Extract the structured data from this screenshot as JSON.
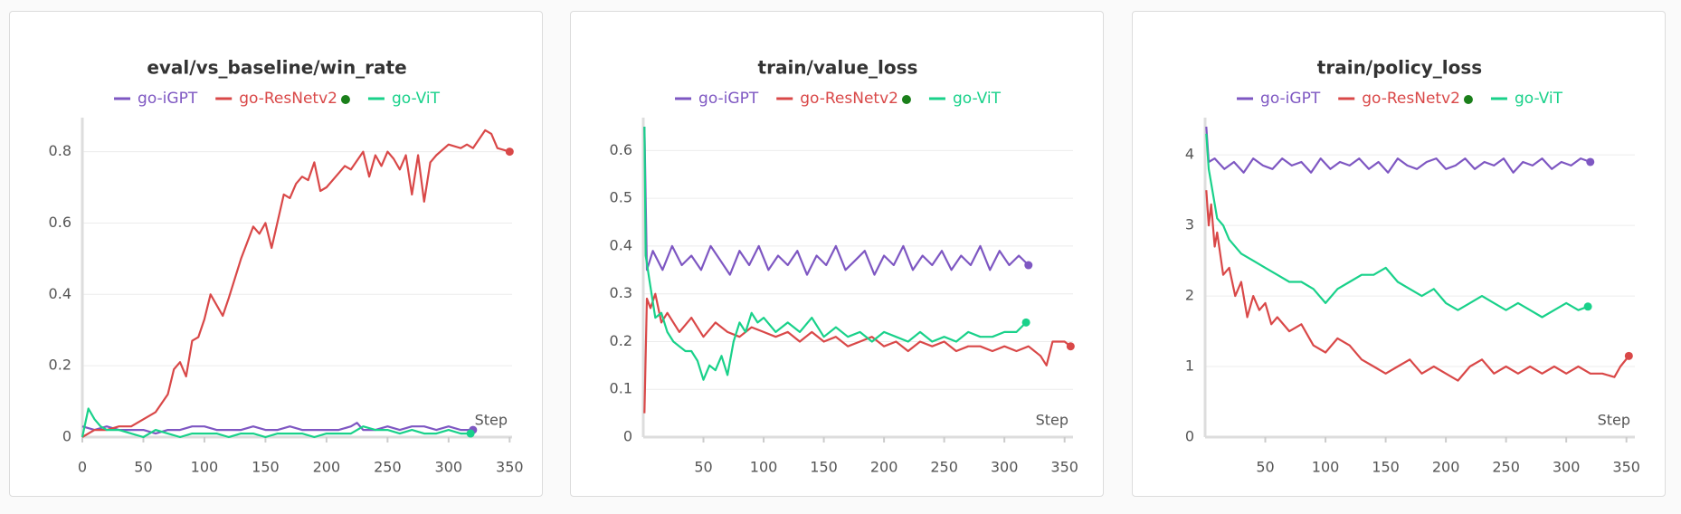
{
  "chart_data": [
    {
      "type": "line",
      "title": "eval/vs_baseline/win_rate",
      "x_label": "Step",
      "grid": true,
      "xlim": [
        0,
        352
      ],
      "ylim": [
        0,
        0.87
      ],
      "xticks": [
        0,
        50,
        100,
        150,
        200,
        250,
        300,
        350
      ],
      "yticks": [
        0,
        0.2,
        0.4,
        0.6,
        0.8
      ],
      "series": [
        {
          "name": "go-iGPT",
          "color": "#7e57c2",
          "x": [
            0,
            10,
            20,
            30,
            40,
            50,
            60,
            70,
            80,
            90,
            100,
            110,
            120,
            130,
            140,
            150,
            160,
            170,
            180,
            190,
            200,
            210,
            220,
            225,
            230,
            240,
            250,
            260,
            270,
            280,
            290,
            300,
            310,
            320
          ],
          "values": [
            0.03,
            0.02,
            0.03,
            0.02,
            0.02,
            0.02,
            0.01,
            0.02,
            0.02,
            0.03,
            0.03,
            0.02,
            0.02,
            0.02,
            0.03,
            0.02,
            0.02,
            0.03,
            0.02,
            0.02,
            0.02,
            0.02,
            0.03,
            0.04,
            0.02,
            0.02,
            0.03,
            0.02,
            0.03,
            0.03,
            0.02,
            0.03,
            0.02,
            0.02
          ]
        },
        {
          "name": "go-ResNetv2",
          "color": "#d94848",
          "x": [
            0,
            10,
            20,
            30,
            40,
            50,
            60,
            70,
            75,
            80,
            85,
            90,
            95,
            100,
            105,
            115,
            120,
            130,
            140,
            145,
            150,
            155,
            165,
            170,
            175,
            180,
            185,
            190,
            195,
            200,
            210,
            215,
            220,
            230,
            235,
            240,
            245,
            250,
            255,
            260,
            265,
            270,
            275,
            280,
            285,
            290,
            300,
            310,
            315,
            320,
            330,
            335,
            340,
            350
          ],
          "values": [
            0.0,
            0.02,
            0.02,
            0.03,
            0.03,
            0.05,
            0.07,
            0.12,
            0.19,
            0.21,
            0.17,
            0.27,
            0.28,
            0.33,
            0.4,
            0.34,
            0.39,
            0.5,
            0.59,
            0.57,
            0.6,
            0.53,
            0.68,
            0.67,
            0.71,
            0.73,
            0.72,
            0.77,
            0.69,
            0.7,
            0.74,
            0.76,
            0.75,
            0.8,
            0.73,
            0.79,
            0.76,
            0.8,
            0.78,
            0.75,
            0.79,
            0.68,
            0.79,
            0.66,
            0.77,
            0.79,
            0.82,
            0.81,
            0.82,
            0.81,
            0.86,
            0.85,
            0.81,
            0.8
          ]
        },
        {
          "name": "go-ViT",
          "color": "#19d18a",
          "x": [
            0,
            5,
            10,
            15,
            20,
            30,
            40,
            50,
            60,
            70,
            80,
            90,
            100,
            110,
            120,
            130,
            140,
            150,
            160,
            170,
            180,
            190,
            200,
            210,
            220,
            230,
            240,
            250,
            260,
            270,
            280,
            290,
            300,
            310,
            318
          ],
          "values": [
            0.0,
            0.08,
            0.05,
            0.03,
            0.02,
            0.02,
            0.01,
            0.0,
            0.02,
            0.01,
            0.0,
            0.01,
            0.01,
            0.01,
            0.0,
            0.01,
            0.01,
            0.0,
            0.01,
            0.01,
            0.01,
            0.0,
            0.01,
            0.01,
            0.01,
            0.03,
            0.02,
            0.02,
            0.01,
            0.02,
            0.01,
            0.01,
            0.02,
            0.01,
            0.01
          ]
        }
      ]
    },
    {
      "type": "line",
      "title": "train/value_loss",
      "x_label": "Step",
      "grid": true,
      "xlim": [
        0,
        357
      ],
      "ylim": [
        0,
        0.65
      ],
      "xticks": [
        50,
        100,
        150,
        200,
        250,
        300,
        350
      ],
      "yticks": [
        0,
        0.1,
        0.2,
        0.3,
        0.4,
        0.5,
        0.6
      ],
      "series": [
        {
          "name": "go-iGPT",
          "color": "#7e57c2",
          "x": [
            1,
            3,
            8,
            16,
            24,
            32,
            40,
            48,
            56,
            64,
            72,
            80,
            88,
            96,
            104,
            112,
            120,
            128,
            136,
            144,
            152,
            160,
            168,
            176,
            184,
            192,
            200,
            208,
            216,
            224,
            232,
            240,
            248,
            256,
            264,
            272,
            280,
            288,
            296,
            304,
            312,
            320
          ],
          "values": [
            0.65,
            0.35,
            0.39,
            0.35,
            0.4,
            0.36,
            0.38,
            0.35,
            0.4,
            0.37,
            0.34,
            0.39,
            0.36,
            0.4,
            0.35,
            0.38,
            0.36,
            0.39,
            0.34,
            0.38,
            0.36,
            0.4,
            0.35,
            0.37,
            0.39,
            0.34,
            0.38,
            0.36,
            0.4,
            0.35,
            0.38,
            0.36,
            0.39,
            0.35,
            0.38,
            0.36,
            0.4,
            0.35,
            0.39,
            0.36,
            0.38,
            0.36
          ]
        },
        {
          "name": "go-ResNetv2",
          "color": "#d94848",
          "x": [
            1,
            3,
            6,
            10,
            15,
            20,
            30,
            40,
            50,
            60,
            70,
            80,
            90,
            100,
            110,
            120,
            130,
            140,
            150,
            160,
            170,
            180,
            190,
            200,
            210,
            220,
            230,
            240,
            250,
            260,
            270,
            280,
            290,
            300,
            310,
            320,
            330,
            335,
            340,
            350,
            355
          ],
          "values": [
            0.05,
            0.29,
            0.27,
            0.3,
            0.24,
            0.26,
            0.22,
            0.25,
            0.21,
            0.24,
            0.22,
            0.21,
            0.23,
            0.22,
            0.21,
            0.22,
            0.2,
            0.22,
            0.2,
            0.21,
            0.19,
            0.2,
            0.21,
            0.19,
            0.2,
            0.18,
            0.2,
            0.19,
            0.2,
            0.18,
            0.19,
            0.19,
            0.18,
            0.19,
            0.18,
            0.19,
            0.17,
            0.15,
            0.2,
            0.2,
            0.19
          ]
        },
        {
          "name": "go-ViT",
          "color": "#19d18a",
          "x": [
            1,
            2,
            5,
            10,
            15,
            20,
            25,
            30,
            35,
            40,
            45,
            50,
            55,
            60,
            65,
            70,
            75,
            80,
            85,
            90,
            95,
            100,
            110,
            120,
            130,
            140,
            150,
            160,
            170,
            180,
            190,
            200,
            210,
            220,
            230,
            240,
            250,
            260,
            270,
            280,
            290,
            300,
            310,
            318
          ],
          "values": [
            0.65,
            0.38,
            0.33,
            0.25,
            0.26,
            0.22,
            0.2,
            0.19,
            0.18,
            0.18,
            0.16,
            0.12,
            0.15,
            0.14,
            0.17,
            0.13,
            0.2,
            0.24,
            0.22,
            0.26,
            0.24,
            0.25,
            0.22,
            0.24,
            0.22,
            0.25,
            0.21,
            0.23,
            0.21,
            0.22,
            0.2,
            0.22,
            0.21,
            0.2,
            0.22,
            0.2,
            0.21,
            0.2,
            0.22,
            0.21,
            0.21,
            0.22,
            0.22,
            0.24
          ]
        }
      ]
    },
    {
      "type": "line",
      "title": "train/policy_loss",
      "x_label": "Step",
      "grid": true,
      "xlim": [
        0,
        357
      ],
      "ylim": [
        0,
        4.4
      ],
      "xticks": [
        50,
        100,
        150,
        200,
        250,
        300,
        350
      ],
      "yticks": [
        0,
        1,
        2,
        3,
        4
      ],
      "series": [
        {
          "name": "go-iGPT",
          "color": "#7e57c2",
          "x": [
            1,
            3,
            8,
            16,
            24,
            32,
            40,
            48,
            56,
            64,
            72,
            80,
            88,
            96,
            104,
            112,
            120,
            128,
            136,
            144,
            152,
            160,
            168,
            176,
            184,
            192,
            200,
            208,
            216,
            224,
            232,
            240,
            248,
            256,
            264,
            272,
            280,
            288,
            296,
            304,
            312,
            320
          ],
          "values": [
            4.4,
            3.9,
            3.95,
            3.8,
            3.9,
            3.75,
            3.95,
            3.85,
            3.8,
            3.95,
            3.85,
            3.9,
            3.75,
            3.95,
            3.8,
            3.9,
            3.85,
            3.95,
            3.8,
            3.9,
            3.75,
            3.95,
            3.85,
            3.8,
            3.9,
            3.95,
            3.8,
            3.85,
            3.95,
            3.8,
            3.9,
            3.85,
            3.95,
            3.75,
            3.9,
            3.85,
            3.95,
            3.8,
            3.9,
            3.85,
            3.95,
            3.9
          ]
        },
        {
          "name": "go-ResNetv2",
          "color": "#d94848",
          "x": [
            1,
            3,
            5,
            8,
            10,
            15,
            20,
            25,
            30,
            35,
            40,
            45,
            50,
            55,
            60,
            70,
            80,
            90,
            100,
            110,
            120,
            130,
            140,
            150,
            160,
            170,
            180,
            190,
            200,
            210,
            220,
            230,
            240,
            250,
            260,
            270,
            280,
            290,
            300,
            310,
            320,
            330,
            340,
            345,
            352
          ],
          "values": [
            3.5,
            3.0,
            3.3,
            2.7,
            2.9,
            2.3,
            2.4,
            2.0,
            2.2,
            1.7,
            2.0,
            1.8,
            1.9,
            1.6,
            1.7,
            1.5,
            1.6,
            1.3,
            1.2,
            1.4,
            1.3,
            1.1,
            1.0,
            0.9,
            1.0,
            1.1,
            0.9,
            1.0,
            0.9,
            0.8,
            1.0,
            1.1,
            0.9,
            1.0,
            0.9,
            1.0,
            0.9,
            1.0,
            0.9,
            1.0,
            0.9,
            0.9,
            0.85,
            1.0,
            1.15
          ]
        },
        {
          "name": "go-ViT",
          "color": "#19d18a",
          "x": [
            1,
            3,
            5,
            10,
            15,
            20,
            30,
            40,
            50,
            60,
            70,
            80,
            90,
            100,
            110,
            120,
            130,
            140,
            150,
            160,
            170,
            180,
            190,
            200,
            210,
            220,
            230,
            240,
            250,
            260,
            270,
            280,
            290,
            300,
            310,
            318
          ],
          "values": [
            4.3,
            3.8,
            3.6,
            3.1,
            3.0,
            2.8,
            2.6,
            2.5,
            2.4,
            2.3,
            2.2,
            2.2,
            2.1,
            1.9,
            2.1,
            2.2,
            2.3,
            2.3,
            2.4,
            2.2,
            2.1,
            2.0,
            2.1,
            1.9,
            1.8,
            1.9,
            2.0,
            1.9,
            1.8,
            1.9,
            1.8,
            1.7,
            1.8,
            1.9,
            1.8,
            1.85
          ]
        }
      ]
    }
  ]
}
